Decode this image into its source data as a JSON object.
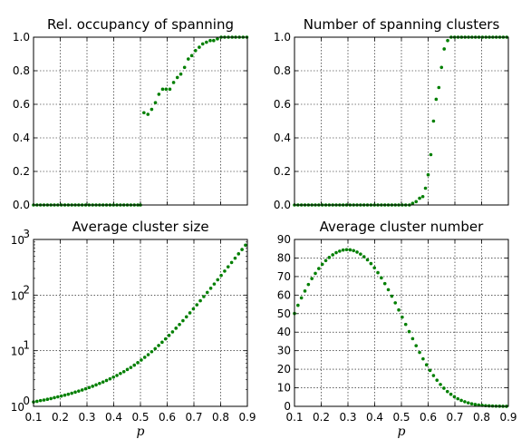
{
  "chart_data": [
    {
      "type": "scatter",
      "title": "Rel. occupancy of spanning",
      "xlabel": "",
      "ylabel": "",
      "xlim": [
        0.1,
        0.9
      ],
      "ylim": [
        0,
        1.0
      ],
      "yscale": "linear",
      "grid": true,
      "marker_color": "#007f00",
      "x_ticks": [
        "",
        "",
        "",
        "",
        "",
        "",
        "",
        "",
        ""
      ],
      "y_ticks": [
        {
          "value": 0.0,
          "label": "0.0"
        },
        {
          "value": 0.2,
          "label": "0.2"
        },
        {
          "value": 0.4,
          "label": "0.4"
        },
        {
          "value": 0.6,
          "label": "0.6"
        },
        {
          "value": 0.8,
          "label": "0.8"
        },
        {
          "value": 1.0,
          "label": "1.0"
        }
      ],
      "series": [
        {
          "x": [
            0.1,
            0.113,
            0.126,
            0.139,
            0.152,
            0.165,
            0.178,
            0.191,
            0.204,
            0.217,
            0.23,
            0.243,
            0.256,
            0.269,
            0.282,
            0.295,
            0.308,
            0.321,
            0.334,
            0.347,
            0.36,
            0.373,
            0.386,
            0.399,
            0.412,
            0.425,
            0.438,
            0.451,
            0.464,
            0.477,
            0.49,
            0.5,
            0.513,
            0.528,
            0.542,
            0.556,
            0.569,
            0.583,
            0.596,
            0.61,
            0.624,
            0.638,
            0.651,
            0.665,
            0.679,
            0.692,
            0.706,
            0.72,
            0.733,
            0.747,
            0.761,
            0.774,
            0.788,
            0.802,
            0.815,
            0.829,
            0.843,
            0.856,
            0.87,
            0.884,
            0.898
          ],
          "y": [
            0,
            0,
            0,
            0,
            0,
            0,
            0,
            0,
            0,
            0,
            0,
            0,
            0,
            0,
            0,
            0,
            0,
            0,
            0,
            0,
            0,
            0,
            0,
            0,
            0,
            0,
            0,
            0,
            0,
            0,
            0,
            0,
            0.55,
            0.54,
            0.57,
            0.61,
            0.66,
            0.69,
            0.69,
            0.69,
            0.73,
            0.76,
            0.78,
            0.82,
            0.87,
            0.89,
            0.92,
            0.94,
            0.96,
            0.97,
            0.98,
            0.98,
            0.99,
            1.0,
            1.0,
            1.0,
            1.0,
            1.0,
            1.0,
            1.0,
            1.0
          ]
        }
      ]
    },
    {
      "type": "scatter",
      "title": "Number of spanning clusters",
      "xlabel": "",
      "ylabel": "",
      "xlim": [
        0.1,
        0.9
      ],
      "ylim": [
        0,
        1.0
      ],
      "yscale": "linear",
      "grid": true,
      "marker_color": "#007f00",
      "x_ticks": [
        "",
        "",
        "",
        "",
        "",
        "",
        "",
        "",
        ""
      ],
      "y_ticks": [
        {
          "value": 0.0,
          "label": "0.0"
        },
        {
          "value": 0.2,
          "label": "0.2"
        },
        {
          "value": 0.4,
          "label": "0.4"
        },
        {
          "value": 0.6,
          "label": "0.6"
        },
        {
          "value": 0.8,
          "label": "0.8"
        },
        {
          "value": 1.0,
          "label": "1.0"
        }
      ],
      "series": [
        {
          "x": [
            0.1,
            0.113,
            0.126,
            0.139,
            0.152,
            0.165,
            0.178,
            0.191,
            0.204,
            0.217,
            0.23,
            0.243,
            0.256,
            0.269,
            0.282,
            0.295,
            0.308,
            0.321,
            0.334,
            0.347,
            0.36,
            0.373,
            0.386,
            0.399,
            0.412,
            0.425,
            0.438,
            0.451,
            0.464,
            0.477,
            0.49,
            0.503,
            0.516,
            0.53,
            0.542,
            0.555,
            0.568,
            0.58,
            0.59,
            0.6,
            0.61,
            0.62,
            0.63,
            0.64,
            0.65,
            0.66,
            0.673,
            0.686,
            0.699,
            0.712,
            0.725,
            0.738,
            0.751,
            0.764,
            0.777,
            0.79,
            0.803,
            0.816,
            0.829,
            0.842,
            0.855,
            0.868,
            0.881,
            0.894
          ],
          "y": [
            0,
            0,
            0,
            0,
            0,
            0,
            0,
            0,
            0,
            0,
            0,
            0,
            0,
            0,
            0,
            0,
            0,
            0,
            0,
            0,
            0,
            0,
            0,
            0,
            0,
            0,
            0,
            0,
            0,
            0,
            0,
            0,
            0,
            0,
            0.01,
            0.02,
            0.04,
            0.05,
            0.1,
            0.18,
            0.3,
            0.5,
            0.63,
            0.7,
            0.82,
            0.93,
            0.98,
            1.0,
            1.0,
            1.0,
            1.0,
            1.0,
            1.0,
            1.0,
            1.0,
            1.0,
            1.0,
            1.0,
            1.0,
            1.0,
            1.0,
            1.0,
            1.0,
            1.0
          ]
        }
      ]
    },
    {
      "type": "scatter",
      "title": "Average cluster size",
      "xlabel": "p",
      "ylabel": "",
      "xlim": [
        0.1,
        0.9
      ],
      "ylim": [
        1,
        1000
      ],
      "yscale": "log",
      "grid": true,
      "marker_color": "#007f00",
      "x_ticks": [
        "0.1",
        "0.2",
        "0.3",
        "0.4",
        "0.5",
        "0.6",
        "0.7",
        "0.8",
        "0.9"
      ],
      "y_ticks": [
        {
          "value": 1,
          "base": "10",
          "exp": "0"
        },
        {
          "value": 10,
          "base": "10",
          "exp": "1"
        },
        {
          "value": 100,
          "base": "10",
          "exp": "2"
        },
        {
          "value": 1000,
          "base": "10",
          "exp": "3"
        }
      ],
      "series": [
        {
          "x": [
            0.1,
            0.113,
            0.126,
            0.139,
            0.152,
            0.165,
            0.178,
            0.191,
            0.204,
            0.217,
            0.23,
            0.243,
            0.256,
            0.269,
            0.282,
            0.295,
            0.308,
            0.321,
            0.334,
            0.347,
            0.36,
            0.373,
            0.386,
            0.399,
            0.412,
            0.425,
            0.438,
            0.451,
            0.464,
            0.477,
            0.49,
            0.503,
            0.516,
            0.529,
            0.542,
            0.555,
            0.568,
            0.581,
            0.594,
            0.607,
            0.62,
            0.633,
            0.646,
            0.659,
            0.672,
            0.685,
            0.698,
            0.711,
            0.724,
            0.737,
            0.75,
            0.763,
            0.776,
            0.789,
            0.802,
            0.815,
            0.828,
            0.841,
            0.854,
            0.867,
            0.88,
            0.893
          ],
          "y": [
            1.2,
            1.23,
            1.27,
            1.3,
            1.34,
            1.38,
            1.43,
            1.48,
            1.53,
            1.59,
            1.65,
            1.72,
            1.8,
            1.88,
            1.97,
            2.07,
            2.18,
            2.3,
            2.43,
            2.58,
            2.74,
            2.92,
            3.12,
            3.35,
            3.6,
            3.9,
            4.2,
            4.6,
            5.0,
            5.5,
            6.1,
            6.8,
            7.6,
            8.5,
            9.6,
            10.9,
            12.4,
            14.2,
            16.3,
            18.8,
            21.8,
            25.4,
            29.6,
            34.7,
            40.7,
            47.9,
            56.5,
            66.8,
            79.1,
            93.9,
            111.6,
            132.8,
            158.2,
            188.8,
            225.4,
            269.4,
            322.1,
            385.3,
            461.2,
            552.0,
            660.0,
            790.0
          ]
        }
      ]
    },
    {
      "type": "scatter",
      "title": "Average cluster number",
      "xlabel": "p",
      "ylabel": "",
      "xlim": [
        0.1,
        0.9
      ],
      "ylim": [
        0,
        90
      ],
      "yscale": "linear",
      "grid": true,
      "marker_color": "#007f00",
      "x_ticks": [
        "0.1",
        "0.2",
        "0.3",
        "0.4",
        "0.5",
        "0.6",
        "0.7",
        "0.8",
        "0.9"
      ],
      "y_ticks": [
        {
          "value": 0,
          "label": "0"
        },
        {
          "value": 10,
          "label": "10"
        },
        {
          "value": 20,
          "label": "20"
        },
        {
          "value": 30,
          "label": "30"
        },
        {
          "value": 40,
          "label": "40"
        },
        {
          "value": 50,
          "label": "50"
        },
        {
          "value": 60,
          "label": "60"
        },
        {
          "value": 70,
          "label": "70"
        },
        {
          "value": 80,
          "label": "80"
        },
        {
          "value": 90,
          "label": "90"
        }
      ],
      "series": [
        {
          "x": [
            0.1,
            0.113,
            0.126,
            0.139,
            0.152,
            0.165,
            0.178,
            0.191,
            0.204,
            0.217,
            0.23,
            0.243,
            0.256,
            0.269,
            0.282,
            0.295,
            0.308,
            0.321,
            0.334,
            0.347,
            0.36,
            0.373,
            0.386,
            0.399,
            0.412,
            0.425,
            0.438,
            0.451,
            0.464,
            0.477,
            0.49,
            0.503,
            0.516,
            0.529,
            0.542,
            0.555,
            0.568,
            0.581,
            0.594,
            0.607,
            0.62,
            0.633,
            0.646,
            0.659,
            0.672,
            0.685,
            0.698,
            0.711,
            0.724,
            0.737,
            0.75,
            0.763,
            0.776,
            0.789,
            0.802,
            0.815,
            0.828,
            0.841,
            0.854,
            0.867,
            0.88,
            0.893
          ],
          "y": [
            50.1,
            54.5,
            58.5,
            62.2,
            65.7,
            68.9,
            71.7,
            74.3,
            76.6,
            78.6,
            80.3,
            81.7,
            82.9,
            83.7,
            84.3,
            84.5,
            84.4,
            84.0,
            83.2,
            82.1,
            80.7,
            79.0,
            77.0,
            74.7,
            72.1,
            69.3,
            66.2,
            62.9,
            59.4,
            55.8,
            52.0,
            48.1,
            44.2,
            40.3,
            36.5,
            32.7,
            29.1,
            25.6,
            22.4,
            19.4,
            16.6,
            14.1,
            11.8,
            9.8,
            8.0,
            6.5,
            5.2,
            4.1,
            3.2,
            2.5,
            1.9,
            1.4,
            1.0,
            0.73,
            0.52,
            0.37,
            0.26,
            0.18,
            0.12,
            0.08,
            0.05,
            0.03
          ]
        }
      ]
    }
  ]
}
